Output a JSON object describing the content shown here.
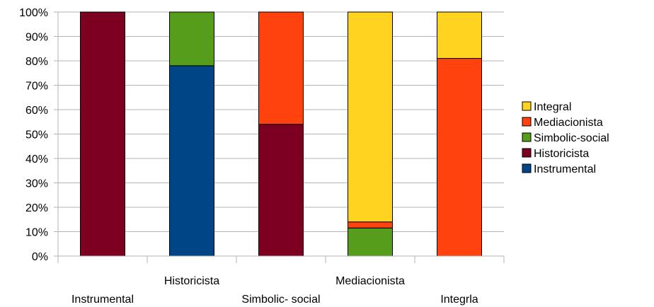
{
  "chart_data": {
    "type": "bar",
    "stacked": true,
    "percent_stacked": true,
    "categories": [
      "Instrumental",
      "Historicista",
      "Simbolic- social",
      "Mediacionista",
      "Integrla"
    ],
    "series": [
      {
        "name": "Instrumental",
        "color": "#004586",
        "values": [
          0,
          78,
          0,
          0,
          0
        ]
      },
      {
        "name": "Historicista",
        "color": "#7e0021",
        "values": [
          100,
          0,
          54,
          0,
          0
        ]
      },
      {
        "name": "Simbolic-social",
        "color": "#579d1c",
        "values": [
          0,
          22,
          0,
          11.5,
          0
        ]
      },
      {
        "name": "Mediacionista",
        "color": "#ff420e",
        "values": [
          0,
          0,
          46,
          2.5,
          81
        ]
      },
      {
        "name": "Integral",
        "color": "#ffd320",
        "values": [
          0,
          0,
          0,
          86,
          19
        ]
      }
    ],
    "ylim": [
      0,
      100
    ],
    "yticks": [
      "0%",
      "10%",
      "20%",
      "30%",
      "40%",
      "50%",
      "60%",
      "70%",
      "80%",
      "90%",
      "100%"
    ],
    "grid": true,
    "legend_position": "right",
    "legend_order": [
      "Integral",
      "Mediacionista",
      "Simbolic-social",
      "Historicista",
      "Instrumental"
    ]
  }
}
